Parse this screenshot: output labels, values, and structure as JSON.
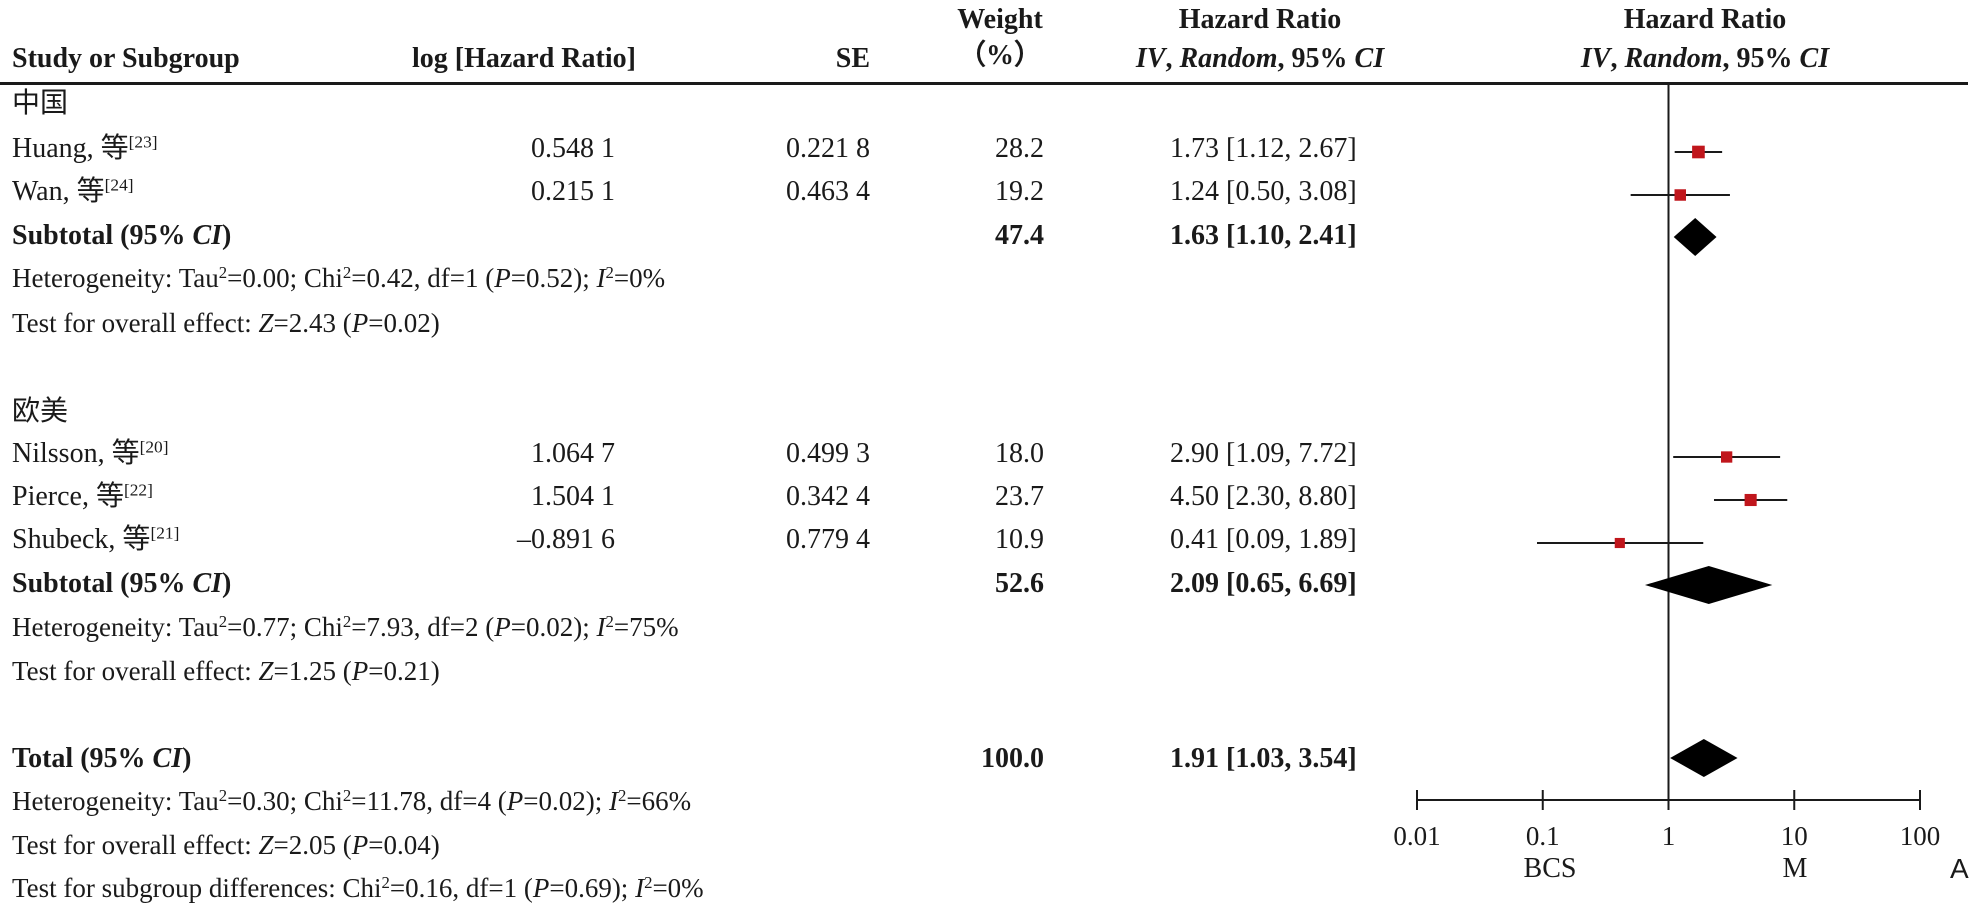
{
  "header": {
    "study": "Study or Subgroup",
    "log_hr": "log [Hazard Ratio]",
    "se": "SE",
    "weight_line1": "Weight",
    "weight_line2": "（%）",
    "hr_title": "Hazard Ratio",
    "hr_method_a": "IV",
    "hr_method_b": ", ",
    "hr_method_c": "Random",
    "hr_method_d": ", 95% ",
    "hr_method_e": "CI",
    "plot_title": "Hazard Ratio"
  },
  "groups": [
    {
      "name": "中国",
      "studies": [
        {
          "author": "Huang, 等",
          "ref": "[23]",
          "log_hr": "0.548 1",
          "se": "0.221 8",
          "weight": "28.2",
          "hr_text": "1.73 [1.12, 2.67]"
        },
        {
          "author": "Wan, 等",
          "ref": "[24]",
          "log_hr": "0.215 1",
          "se": "0.463 4",
          "weight": "19.2",
          "hr_text": "1.24 [0.50, 3.08]"
        }
      ],
      "subtotal": {
        "label_a": "Subtotal (95% ",
        "label_b": "CI",
        "label_c": ")",
        "weight": "47.4",
        "hr_text": "1.63 [1.10, 2.41]"
      },
      "heterogeneity": {
        "a": "Heterogeneity: Tau",
        "b": "2",
        "c": "=0.00; Chi",
        "d": "2",
        "e": "=0.42, df=1 (",
        "f": "P",
        "g": "=0.52); ",
        "h": "I",
        "i": "2",
        "j": "=0%"
      },
      "overall": {
        "a": "Test for overall effect: ",
        "b": "Z",
        "c": "=2.43 (",
        "d": "P",
        "e": "=0.02)"
      }
    },
    {
      "name": "欧美",
      "studies": [
        {
          "author": "Nilsson, 等",
          "ref": "[20]",
          "log_hr": "1.064 7",
          "se": "0.499 3",
          "weight": "18.0",
          "hr_text": "2.90 [1.09, 7.72]"
        },
        {
          "author": "Pierce, 等",
          "ref": "[22]",
          "log_hr": "1.504 1",
          "se": "0.342 4",
          "weight": "23.7",
          "hr_text": "4.50 [2.30, 8.80]"
        },
        {
          "author": "Shubeck, 等",
          "ref": "[21]",
          "log_hr": "–0.891 6",
          "se": "0.779 4",
          "weight": "10.9",
          "hr_text": "0.41 [0.09, 1.89]"
        }
      ],
      "subtotal": {
        "label_a": "Subtotal (95% ",
        "label_b": "CI",
        "label_c": ")",
        "weight": "52.6",
        "hr_text": "2.09 [0.65, 6.69]"
      },
      "heterogeneity": {
        "a": "Heterogeneity: Tau",
        "b": "2",
        "c": "=0.77; Chi",
        "d": "2",
        "e": "=7.93, df=2 (",
        "f": "P",
        "g": "=0.02); ",
        "h": "I",
        "i": "2",
        "j": "=75%"
      },
      "overall": {
        "a": "Test for overall effect: ",
        "b": "Z",
        "c": "=1.25 (",
        "d": "P",
        "e": "=0.21)"
      }
    }
  ],
  "total": {
    "label_a": "Total (95% ",
    "label_b": "CI",
    "label_c": ")",
    "weight": "100.0",
    "hr_text": "1.91 [1.03, 3.54]",
    "heterogeneity": {
      "a": "Heterogeneity: Tau",
      "b": "2",
      "c": "=0.30; Chi",
      "d": "2",
      "e": "=11.78, df=4 (",
      "f": "P",
      "g": "=0.02); ",
      "h": "I",
      "i": "2",
      "j": "=66%"
    },
    "overall": {
      "a": "Test for overall effect: ",
      "b": "Z",
      "c": "=2.05 (",
      "d": "P",
      "e": "=0.04)"
    },
    "subgroup": {
      "a": "Test for subgroup differences: Chi",
      "b": "2",
      "c": "=0.16, df=1 (",
      "d": "P",
      "e": "=0.69); ",
      "f": "I",
      "g": "2",
      "h": "=0%"
    }
  },
  "axis": {
    "left_label": "BCS",
    "right_label": "M",
    "panel_label": "A"
  },
  "colors": {
    "study_marker": "#c0161c",
    "diamond": "#000000",
    "line": "#1a1a1a"
  },
  "chart_data": {
    "type": "forest",
    "scale": "log",
    "xlim": [
      0.01,
      100
    ],
    "ticks": [
      0.01,
      0.1,
      1,
      10,
      100
    ],
    "tick_labels": [
      "0.01",
      "0.1",
      "1",
      "10",
      "100"
    ],
    "reference_line": 1,
    "studies": [
      {
        "name": "Huang",
        "hr": 1.73,
        "lo": 1.12,
        "hi": 2.67,
        "weight": 28.2
      },
      {
        "name": "Wan",
        "hr": 1.24,
        "lo": 0.5,
        "hi": 3.08,
        "weight": 19.2
      },
      {
        "name": "Nilsson",
        "hr": 2.9,
        "lo": 1.09,
        "hi": 7.72,
        "weight": 18.0
      },
      {
        "name": "Pierce",
        "hr": 4.5,
        "lo": 2.3,
        "hi": 8.8,
        "weight": 23.7
      },
      {
        "name": "Shubeck",
        "hr": 0.41,
        "lo": 0.09,
        "hi": 1.89,
        "weight": 10.9
      }
    ],
    "summaries": [
      {
        "name": "Subtotal 中国",
        "hr": 1.63,
        "lo": 1.1,
        "hi": 2.41
      },
      {
        "name": "Subtotal 欧美",
        "hr": 2.09,
        "lo": 0.65,
        "hi": 6.69
      },
      {
        "name": "Total",
        "hr": 1.91,
        "lo": 1.03,
        "hi": 3.54
      }
    ]
  }
}
